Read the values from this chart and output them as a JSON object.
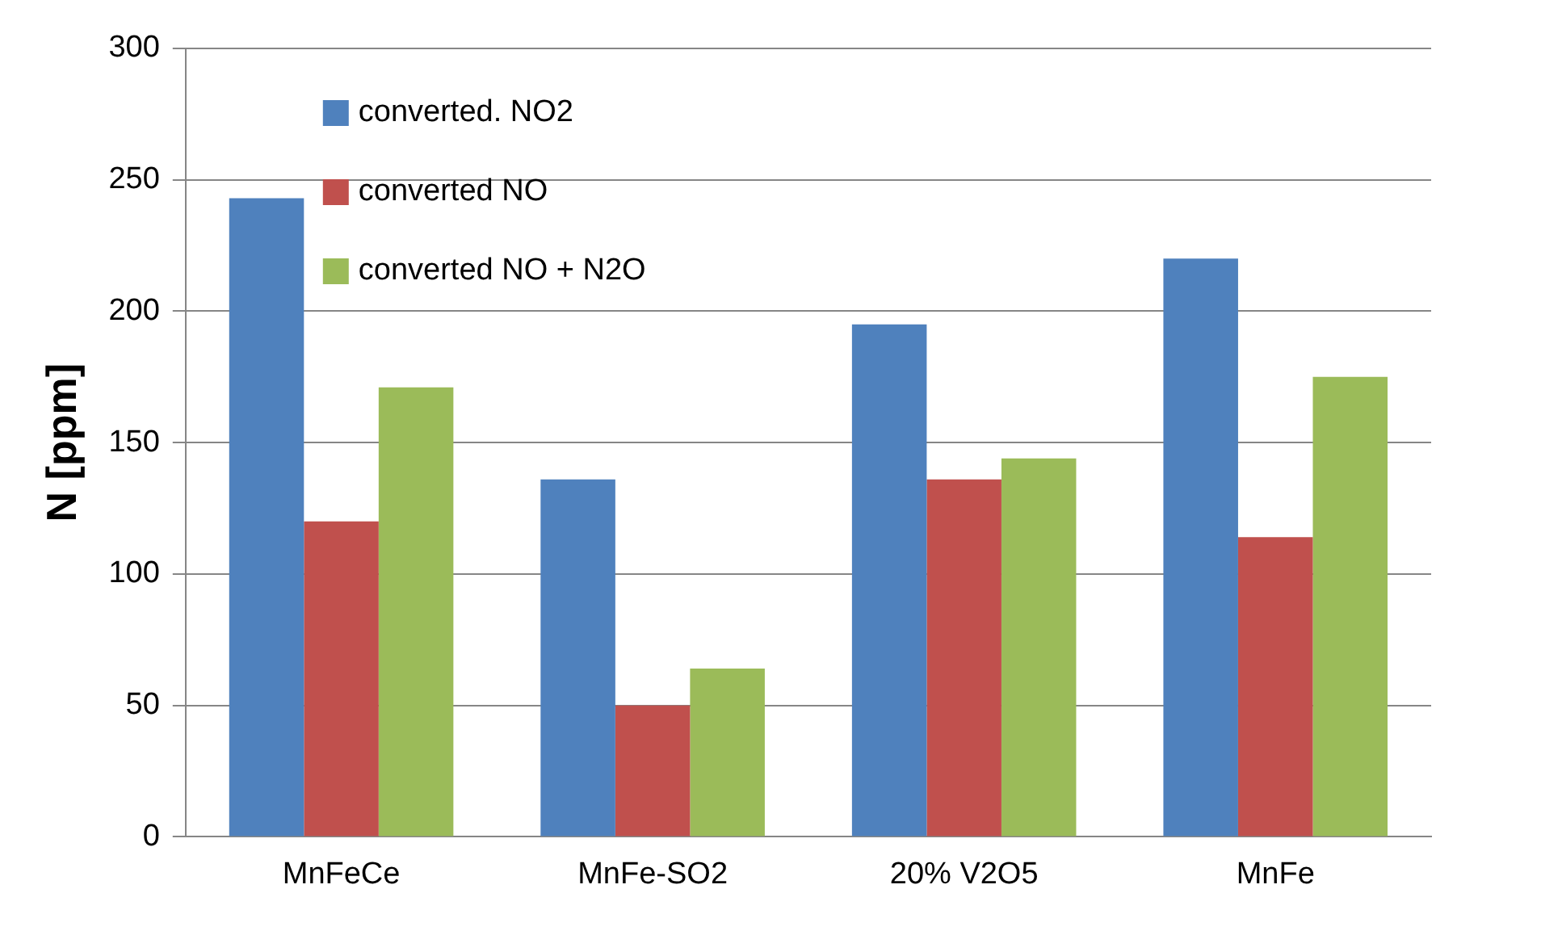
{
  "chart_data": {
    "type": "bar",
    "ylabel": "N [ppm]",
    "categories": [
      "MnFeCe",
      "MnFe-SO2",
      "20% V2O5",
      "MnFe"
    ],
    "series": [
      {
        "name": "converted. NO2",
        "color": "#4f81bd",
        "values": [
          243,
          136,
          195,
          220
        ]
      },
      {
        "name": "converted NO",
        "color": "#c0504d",
        "values": [
          120,
          50,
          136,
          114
        ]
      },
      {
        "name": "converted NO + N2O",
        "color": "#9bbb59",
        "values": [
          171,
          64,
          144,
          175
        ]
      }
    ],
    "ylim": [
      0,
      300
    ],
    "yticks": [
      0,
      50,
      100,
      150,
      200,
      250,
      300
    ],
    "grid": "y",
    "legend": "top left"
  }
}
